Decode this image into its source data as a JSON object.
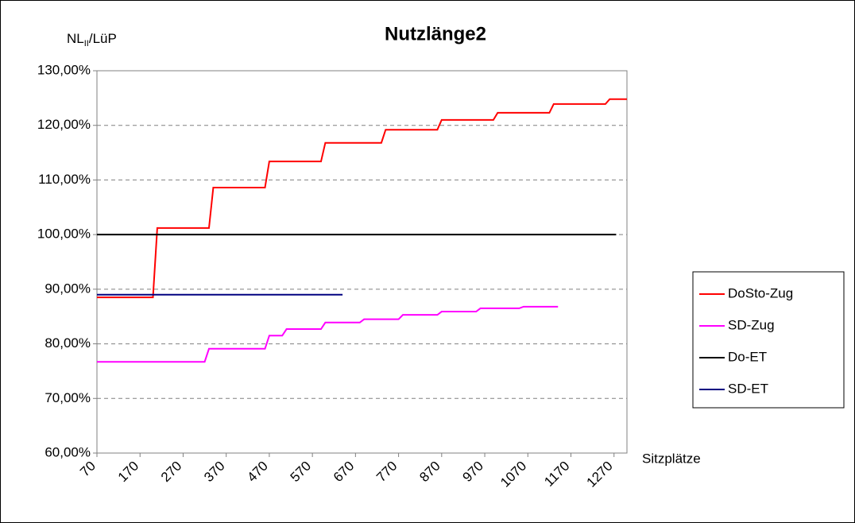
{
  "chart_data": {
    "type": "line",
    "title": "Nutzlänge2",
    "y_label": [
      "NL",
      "II",
      "/LüP"
    ],
    "x_label": "Sitzplätze",
    "xlim": [
      70,
      1300
    ],
    "xticks": [
      70,
      170,
      270,
      370,
      470,
      570,
      670,
      770,
      870,
      970,
      1070,
      1170,
      1270
    ],
    "ylim": [
      60,
      130
    ],
    "yticks": [
      {
        "value": 60,
        "label": "60,00%"
      },
      {
        "value": 70,
        "label": "70,00%"
      },
      {
        "value": 80,
        "label": "80,00%"
      },
      {
        "value": 90,
        "label": "90,00%"
      },
      {
        "value": 100,
        "label": "100,00%"
      },
      {
        "value": 110,
        "label": "110,00%"
      },
      {
        "value": 120,
        "label": "120,00%"
      },
      {
        "value": 130,
        "label": "130,00%"
      }
    ],
    "grid": true,
    "legend": "right",
    "series": [
      {
        "name": "DoSto-Zug",
        "color": "#ff0000",
        "x": [
          70,
          200,
          210,
          330,
          340,
          460,
          470,
          590,
          600,
          730,
          740,
          860,
          870,
          990,
          1000,
          1120,
          1130,
          1250,
          1260,
          1300
        ],
        "values": [
          88.5,
          88.5,
          101.2,
          101.2,
          108.6,
          108.6,
          113.4,
          113.4,
          116.8,
          116.8,
          119.2,
          119.2,
          121,
          121,
          122.3,
          122.3,
          123.9,
          123.9,
          124.8,
          124.8
        ]
      },
      {
        "name": "SD-Zug",
        "color": "#ff00ff",
        "x": [
          70,
          320,
          330,
          460,
          470,
          500,
          510,
          590,
          600,
          680,
          690,
          770,
          780,
          860,
          870,
          950,
          960,
          1050,
          1060,
          1140
        ],
        "values": [
          76.7,
          76.7,
          79.1,
          79.1,
          81.5,
          81.5,
          82.7,
          82.7,
          83.9,
          83.9,
          84.5,
          84.5,
          85.3,
          85.3,
          85.9,
          85.9,
          86.5,
          86.5,
          86.8,
          86.8
        ]
      },
      {
        "name": "Do-ET",
        "color": "#000000",
        "x": [
          70,
          1275
        ],
        "values": [
          100,
          100
        ]
      },
      {
        "name": "SD-ET",
        "color": "#000080",
        "x": [
          70,
          640
        ],
        "values": [
          89,
          89
        ]
      }
    ]
  }
}
